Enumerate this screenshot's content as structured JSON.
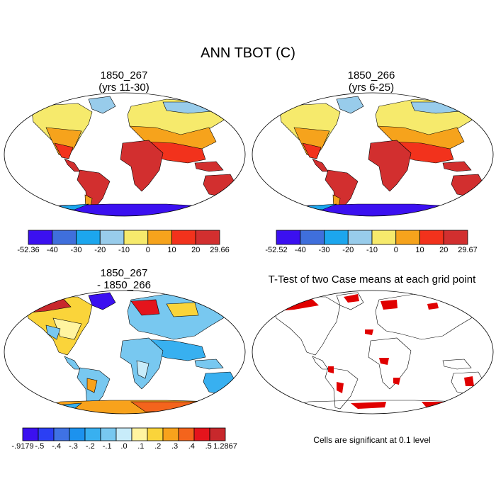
{
  "title": "ANN TBOT (C)",
  "panels": {
    "top_left": {
      "title1": "1850_267",
      "title2": "(yrs 11-30)"
    },
    "top_right": {
      "title1": "1850_266",
      "title2": "(yrs 6-25)"
    },
    "bottom_left": {
      "title1": "1850_267",
      "title2": "- 1850_266"
    },
    "bottom_right": {
      "title1": "T-Test of two Case means at each grid point"
    }
  },
  "colorbar_top_left": {
    "labels": [
      "-52.36",
      "-40",
      "-30",
      "-20",
      "-10",
      "0",
      "10",
      "20",
      "29.66"
    ],
    "colors": [
      "#3b10f0",
      "#3f6fdc",
      "#1ca6ee",
      "#98cceb",
      "#f6ea6c",
      "#f6a31c",
      "#f2321c",
      "#d22f2f"
    ]
  },
  "colorbar_top_right": {
    "labels": [
      "-52.52",
      "-40",
      "-30",
      "-20",
      "-10",
      "0",
      "10",
      "20",
      "29.67"
    ],
    "colors": [
      "#3b10f0",
      "#3f6fdc",
      "#1ca6ee",
      "#98cceb",
      "#f6ea6c",
      "#f6a31c",
      "#f2321c",
      "#d22f2f"
    ]
  },
  "colorbar_bottom_left": {
    "labels": [
      "-.9179",
      "-.5",
      "-.4",
      "-.3",
      "-.2",
      "-.1",
      ".0",
      ".1",
      ".2",
      ".3",
      ".4",
      ".5",
      "1.2867"
    ],
    "colors": [
      "#3b10f0",
      "#2b3ff4",
      "#3f72e4",
      "#1c92ee",
      "#38b0f0",
      "#78c8f0",
      "#c8ecfa",
      "#fff4a0",
      "#fad43a",
      "#f8a21c",
      "#f4641c",
      "#e4141c",
      "#c8282c"
    ]
  },
  "note": "Cells are significant at 0.1 level",
  "colors": {
    "ocean": "#ffffff",
    "land_warm": "#d22f2f",
    "ice_cold": "#3b10f0",
    "significant": "#e00000"
  }
}
